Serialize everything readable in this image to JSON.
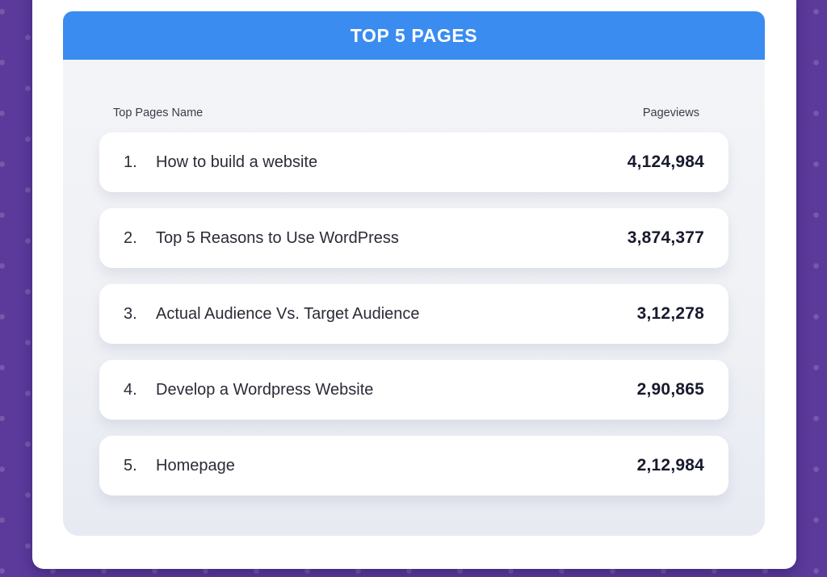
{
  "panel": {
    "title": "TOP 5 PAGES",
    "columns": {
      "name": "Top Pages Name",
      "views": "Pageviews"
    },
    "rows": [
      {
        "rank": "1.",
        "name": "How to build a website",
        "views": "4,124,984"
      },
      {
        "rank": "2.",
        "name": "Top 5 Reasons to Use WordPress",
        "views": "3,874,377"
      },
      {
        "rank": "3.",
        "name": "Actual Audience Vs. Target Audience",
        "views": "3,12,278"
      },
      {
        "rank": "4.",
        "name": "Develop a Wordpress Website",
        "views": "2,90,865"
      },
      {
        "rank": "5.",
        "name": "Homepage",
        "views": "2,12,984"
      }
    ]
  },
  "colors": {
    "background_purple": "#5b3a9b",
    "background_dot": "#7157ab",
    "header_blue": "#3a8cf0",
    "panel_gray": "#f1f3f7",
    "row_white": "#ffffff",
    "label_gray": "#3c3c49",
    "text_dark": "#2b2b38",
    "value_dark": "#181a2e"
  }
}
